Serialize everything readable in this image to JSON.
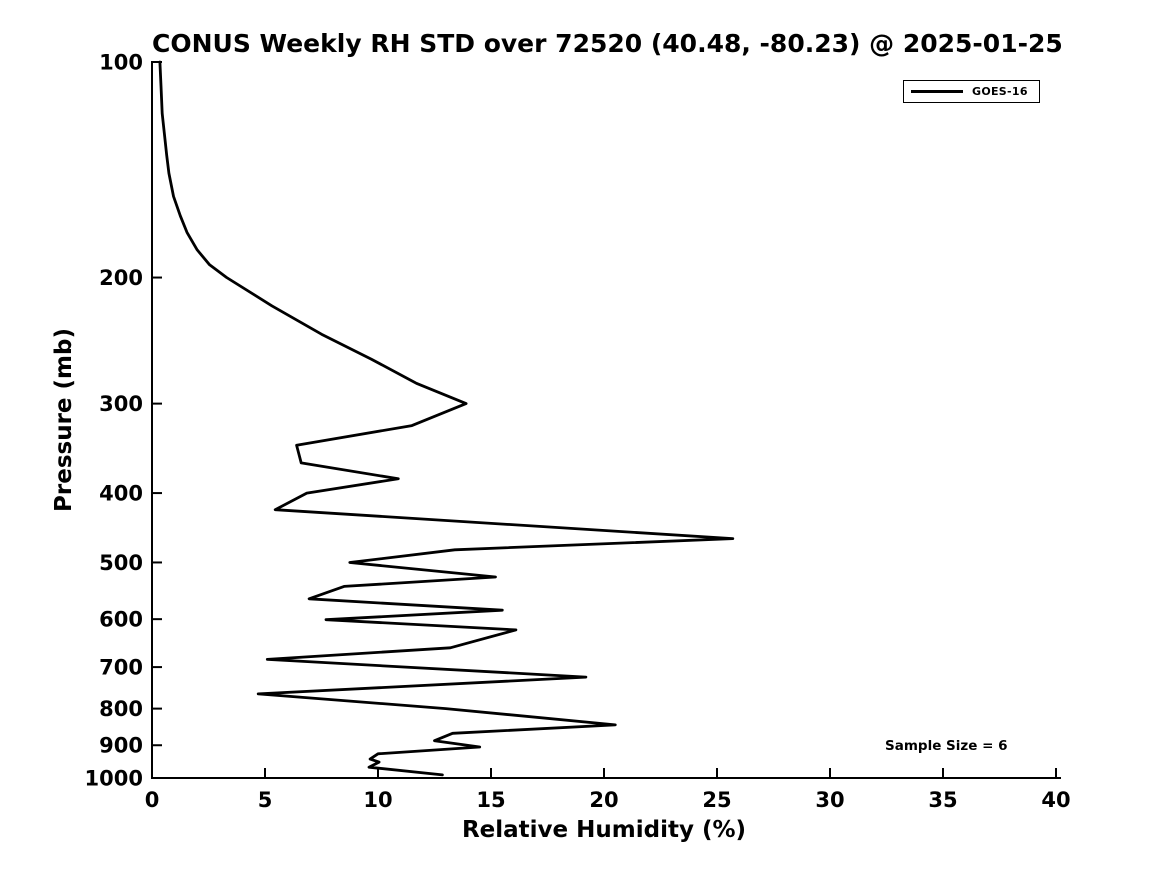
{
  "chart_data": {
    "type": "line",
    "title": "CONUS Weekly RH STD over 72520 (40.48, -80.23) @ 2025-01-25",
    "xlabel": "Relative Humidity (%)",
    "ylabel": "Pressure (mb)",
    "xlim": [
      0,
      40
    ],
    "ylim": [
      1000,
      100
    ],
    "y_scale": "log",
    "grid": false,
    "xticks": [
      0,
      5,
      10,
      15,
      20,
      25,
      30,
      35,
      40
    ],
    "yticks": [
      100,
      200,
      300,
      400,
      500,
      600,
      700,
      800,
      900,
      1000
    ],
    "legend_position": "upper-right",
    "annotation": {
      "text": "Sample Size = 6"
    },
    "series": [
      {
        "name": "GOES-16",
        "color": "#000000",
        "points_format": "[pressure_mb, rh_percent]",
        "points": [
          [
            100,
            0.35
          ],
          [
            108,
            0.4
          ],
          [
            118,
            0.45
          ],
          [
            126,
            0.55
          ],
          [
            135,
            0.65
          ],
          [
            143,
            0.75
          ],
          [
            154,
            0.95
          ],
          [
            164,
            1.25
          ],
          [
            173,
            1.55
          ],
          [
            183,
            2.0
          ],
          [
            192,
            2.55
          ],
          [
            200,
            3.3
          ],
          [
            219,
            5.3
          ],
          [
            240,
            7.5
          ],
          [
            260,
            9.7
          ],
          [
            281,
            11.7
          ],
          [
            300,
            13.9
          ],
          [
            322,
            11.5
          ],
          [
            343,
            6.4
          ],
          [
            363,
            6.6
          ],
          [
            382,
            10.9
          ],
          [
            400,
            6.85
          ],
          [
            422,
            5.45
          ],
          [
            463,
            25.7
          ],
          [
            480,
            13.4
          ],
          [
            500,
            8.75
          ],
          [
            524,
            15.2
          ],
          [
            540,
            8.5
          ],
          [
            562,
            6.95
          ],
          [
            583,
            15.5
          ],
          [
            601,
            7.7
          ],
          [
            621,
            16.1
          ],
          [
            658,
            13.2
          ],
          [
            683,
            5.1
          ],
          [
            723,
            19.2
          ],
          [
            763,
            4.7
          ],
          [
            800,
            13.0
          ],
          [
            843,
            20.5
          ],
          [
            866,
            13.3
          ],
          [
            887,
            12.5
          ],
          [
            905,
            14.5
          ],
          [
            925,
            10.0
          ],
          [
            941,
            9.65
          ],
          [
            950,
            10.05
          ],
          [
            966,
            9.6
          ],
          [
            990,
            12.85
          ]
        ]
      }
    ],
    "colors": {
      "line": "#000000",
      "background": "#ffffff",
      "text": "#000000"
    }
  }
}
